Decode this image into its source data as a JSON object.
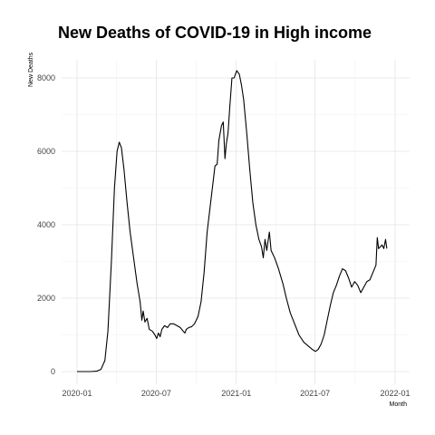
{
  "chart_data": {
    "type": "line",
    "title": "New Deaths of COVID-19 in High income",
    "xlabel": "Month",
    "ylabel": "New Deaths",
    "x_range": [
      "2020-01-01",
      "2022-01-01"
    ],
    "ylim": [
      -300,
      8600
    ],
    "y_ticks": [
      0,
      2000,
      4000,
      6000,
      8000
    ],
    "x_ticks": [
      "2020-01",
      "2020-07",
      "2021-01",
      "2021-07",
      "2022-01"
    ],
    "x_tick_dates": [
      "2020-01-01",
      "2020-07-01",
      "2021-01-01",
      "2021-07-01",
      "2022-01-01"
    ],
    "grid": true,
    "line_color": "#000000",
    "series": [
      {
        "points": [
          [
            "2020-01-01",
            0
          ],
          [
            "2020-01-15",
            0
          ],
          [
            "2020-02-01",
            0
          ],
          [
            "2020-02-15",
            10
          ],
          [
            "2020-02-25",
            60
          ],
          [
            "2020-03-05",
            300
          ],
          [
            "2020-03-12",
            1100
          ],
          [
            "2020-03-20",
            3000
          ],
          [
            "2020-03-27",
            5000
          ],
          [
            "2020-04-02",
            6000
          ],
          [
            "2020-04-07",
            6250
          ],
          [
            "2020-04-12",
            6100
          ],
          [
            "2020-04-18",
            5500
          ],
          [
            "2020-04-25",
            4600
          ],
          [
            "2020-05-02",
            3800
          ],
          [
            "2020-05-10",
            3100
          ],
          [
            "2020-05-18",
            2400
          ],
          [
            "2020-05-25",
            1900
          ],
          [
            "2020-05-29",
            1400
          ],
          [
            "2020-06-01",
            1650
          ],
          [
            "2020-06-05",
            1350
          ],
          [
            "2020-06-10",
            1450
          ],
          [
            "2020-06-15",
            1150
          ],
          [
            "2020-06-22",
            1100
          ],
          [
            "2020-06-28",
            1000
          ],
          [
            "2020-07-02",
            900
          ],
          [
            "2020-07-06",
            1050
          ],
          [
            "2020-07-10",
            950
          ],
          [
            "2020-07-14",
            1150
          ],
          [
            "2020-07-20",
            1250
          ],
          [
            "2020-07-27",
            1200
          ],
          [
            "2020-08-02",
            1300
          ],
          [
            "2020-08-10",
            1300
          ],
          [
            "2020-08-18",
            1250
          ],
          [
            "2020-08-25",
            1200
          ],
          [
            "2020-09-01",
            1100
          ],
          [
            "2020-09-05",
            1050
          ],
          [
            "2020-09-08",
            1150
          ],
          [
            "2020-09-14",
            1200
          ],
          [
            "2020-09-20",
            1220
          ],
          [
            "2020-09-27",
            1300
          ],
          [
            "2020-10-05",
            1500
          ],
          [
            "2020-10-12",
            1900
          ],
          [
            "2020-10-19",
            2700
          ],
          [
            "2020-10-26",
            3800
          ],
          [
            "2020-11-02",
            4500
          ],
          [
            "2020-11-09",
            5200
          ],
          [
            "2020-11-13",
            5600
          ],
          [
            "2020-11-18",
            5650
          ],
          [
            "2020-11-22",
            6300
          ],
          [
            "2020-11-28",
            6700
          ],
          [
            "2020-12-02",
            6800
          ],
          [
            "2020-12-06",
            5800
          ],
          [
            "2020-12-09",
            6200
          ],
          [
            "2020-12-13",
            6500
          ],
          [
            "2020-12-17",
            7200
          ],
          [
            "2020-12-22",
            8000
          ],
          [
            "2020-12-27",
            8000
          ],
          [
            "2021-01-02",
            8200
          ],
          [
            "2021-01-08",
            8100
          ],
          [
            "2021-01-13",
            7800
          ],
          [
            "2021-01-18",
            7400
          ],
          [
            "2021-01-25",
            6500
          ],
          [
            "2021-02-01",
            5500
          ],
          [
            "2021-02-08",
            4600
          ],
          [
            "2021-02-15",
            4000
          ],
          [
            "2021-02-22",
            3600
          ],
          [
            "2021-02-28",
            3400
          ],
          [
            "2021-03-04",
            3100
          ],
          [
            "2021-03-08",
            3600
          ],
          [
            "2021-03-12",
            3300
          ],
          [
            "2021-03-18",
            3800
          ],
          [
            "2021-03-22",
            3300
          ],
          [
            "2021-03-30",
            3100
          ],
          [
            "2021-04-08",
            2800
          ],
          [
            "2021-04-18",
            2400
          ],
          [
            "2021-04-26",
            2000
          ],
          [
            "2021-05-05",
            1600
          ],
          [
            "2021-05-15",
            1300
          ],
          [
            "2021-05-25",
            1000
          ],
          [
            "2021-06-05",
            800
          ],
          [
            "2021-06-15",
            700
          ],
          [
            "2021-06-25",
            600
          ],
          [
            "2021-07-02",
            550
          ],
          [
            "2021-07-08",
            600
          ],
          [
            "2021-07-15",
            750
          ],
          [
            "2021-07-22",
            1000
          ],
          [
            "2021-07-29",
            1400
          ],
          [
            "2021-08-05",
            1800
          ],
          [
            "2021-08-12",
            2150
          ],
          [
            "2021-08-19",
            2350
          ],
          [
            "2021-08-26",
            2600
          ],
          [
            "2021-09-02",
            2800
          ],
          [
            "2021-09-09",
            2750
          ],
          [
            "2021-09-16",
            2550
          ],
          [
            "2021-09-23",
            2300
          ],
          [
            "2021-09-30",
            2450
          ],
          [
            "2021-10-07",
            2350
          ],
          [
            "2021-10-14",
            2150
          ],
          [
            "2021-10-21",
            2300
          ],
          [
            "2021-10-28",
            2450
          ],
          [
            "2021-11-04",
            2500
          ],
          [
            "2021-11-11",
            2700
          ],
          [
            "2021-11-18",
            2900
          ],
          [
            "2021-11-21",
            3650
          ],
          [
            "2021-11-24",
            3350
          ],
          [
            "2021-11-28",
            3400
          ],
          [
            "2021-12-02",
            3450
          ],
          [
            "2021-12-06",
            3350
          ],
          [
            "2021-12-10",
            3600
          ],
          [
            "2021-12-13",
            3350
          ]
        ]
      }
    ]
  }
}
